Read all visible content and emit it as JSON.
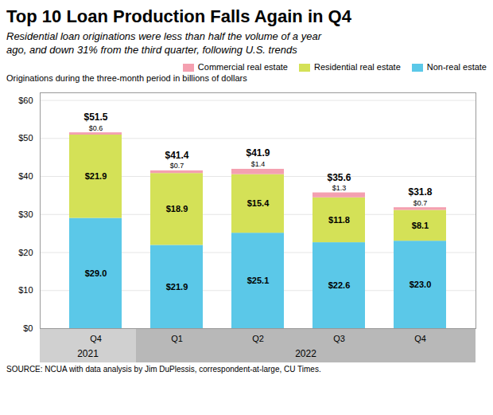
{
  "chart_data": {
    "type": "bar",
    "stacked": true,
    "title": "Top 10 Loan Production Falls Again in Q4",
    "subtitle": "Residential loan originations were less than half the volume of a year\nago, and down 31% from the third quarter, following U.S. trends",
    "y_label": "Originations during the three-month period in billions of dollars",
    "source": "SOURCE: NCUA with data analysis by Jim DuPlessis, correspondent-at-large, CU Times.",
    "categories": [
      "Q4",
      "Q1",
      "Q2",
      "Q3",
      "Q4"
    ],
    "category_groups": [
      "2021",
      "2022",
      "2022",
      "2022",
      "2022"
    ],
    "group_colors": [
      "#d0d0d0",
      "#b8b8b8"
    ],
    "series": [
      {
        "name": "Non-real estate",
        "color": "#5bc8e8",
        "values": [
          29.0,
          21.9,
          25.1,
          22.6,
          23.0
        ],
        "value_labels": [
          "$29.0",
          "$21.9",
          "$25.1",
          "$22.6",
          "$23.0"
        ]
      },
      {
        "name": "Residential real estate",
        "color": "#d4e157",
        "values": [
          21.9,
          18.9,
          15.4,
          11.8,
          8.1
        ],
        "value_labels": [
          "$21.9",
          "$18.9",
          "$15.4",
          "$11.8",
          "$8.1"
        ]
      },
      {
        "name": "Commercial real estate",
        "color": "#f4a0b0",
        "values": [
          0.6,
          0.7,
          1.4,
          1.3,
          0.7
        ],
        "value_labels": [
          "$0.6",
          "$0.7",
          "$1.4",
          "$1.3",
          "$0.7"
        ]
      }
    ],
    "totals": [
      51.5,
      41.4,
      41.9,
      35.6,
      31.8
    ],
    "total_labels": [
      "$51.5",
      "$41.4",
      "$41.9",
      "$35.6",
      "$31.8"
    ],
    "ylim": [
      0,
      62
    ],
    "yticks": [
      {
        "value": 0,
        "label": "$0"
      },
      {
        "value": 10,
        "label": "$10"
      },
      {
        "value": 20,
        "label": "$20"
      },
      {
        "value": 30,
        "label": "$30"
      },
      {
        "value": 40,
        "label": "$40"
      },
      {
        "value": 50,
        "label": "$50"
      },
      {
        "value": 60,
        "label": "$60"
      }
    ],
    "grid": true,
    "data_labels": true,
    "legend": "upper right"
  }
}
